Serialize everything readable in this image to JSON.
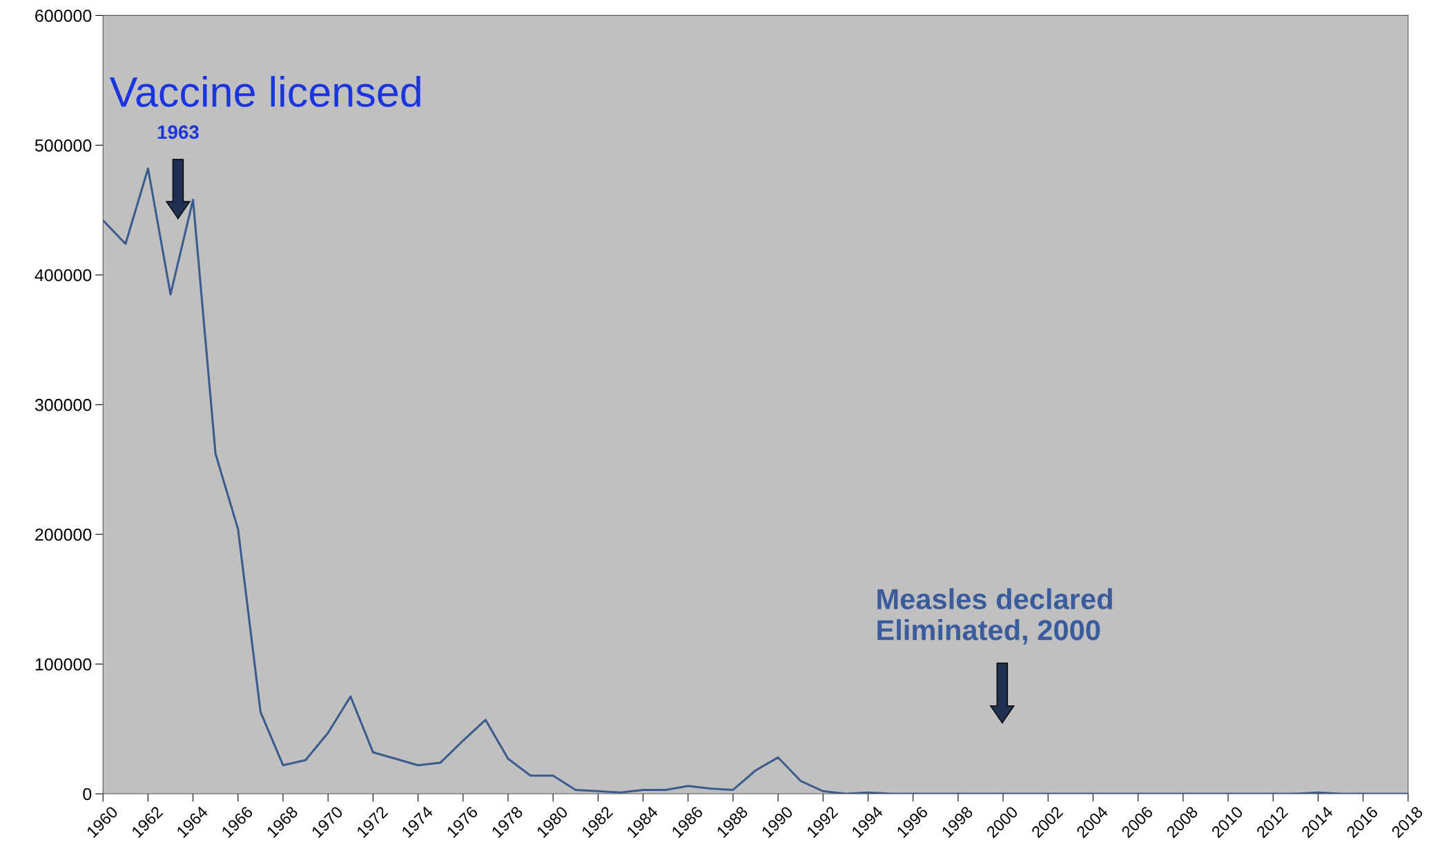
{
  "chart_data": {
    "type": "line",
    "x": [
      1960,
      1961,
      1962,
      1963,
      1964,
      1965,
      1966,
      1967,
      1968,
      1969,
      1970,
      1971,
      1972,
      1973,
      1974,
      1975,
      1976,
      1977,
      1978,
      1979,
      1980,
      1981,
      1982,
      1983,
      1984,
      1985,
      1986,
      1987,
      1988,
      1989,
      1990,
      1991,
      1992,
      1993,
      1994,
      1995,
      1996,
      1997,
      1998,
      1999,
      2000,
      2001,
      2002,
      2003,
      2004,
      2005,
      2006,
      2007,
      2008,
      2009,
      2010,
      2011,
      2012,
      2013,
      2014,
      2015,
      2016,
      2017,
      2018
    ],
    "series": [
      {
        "color": "#3b5b8c",
        "values": [
          442000,
          424000,
          482000,
          385000,
          458000,
          262000,
          204000,
          63000,
          22000,
          26000,
          47000,
          75000,
          32000,
          27000,
          22000,
          24000,
          41000,
          57000,
          27000,
          14000,
          14000,
          3000,
          2000,
          1000,
          3000,
          3000,
          6000,
          4000,
          3000,
          18000,
          28000,
          10000,
          2000,
          0,
          1000,
          0,
          0,
          0,
          0,
          0,
          0,
          0,
          0,
          0,
          0,
          0,
          0,
          0,
          0,
          0,
          0,
          0,
          0,
          0,
          1000,
          0,
          0,
          0,
          0
        ]
      }
    ],
    "xlim": [
      1960,
      2018
    ],
    "xticks": [
      1960,
      1962,
      1964,
      1966,
      1968,
      1970,
      1972,
      1974,
      1976,
      1978,
      1980,
      1982,
      1984,
      1986,
      1988,
      1990,
      1992,
      1994,
      1996,
      1998,
      2000,
      2002,
      2004,
      2006,
      2008,
      2010,
      2012,
      2014,
      2016,
      2018
    ],
    "ylim": [
      0,
      600000
    ],
    "yticks": [
      0,
      100000,
      200000,
      300000,
      400000,
      500000,
      600000
    ],
    "grid": false,
    "legend": false,
    "marker": "none",
    "line_style": "solid",
    "annotations": [
      "Vaccine licensed",
      "1963",
      "Measles declared\nEliminated, 2000"
    ]
  }
}
